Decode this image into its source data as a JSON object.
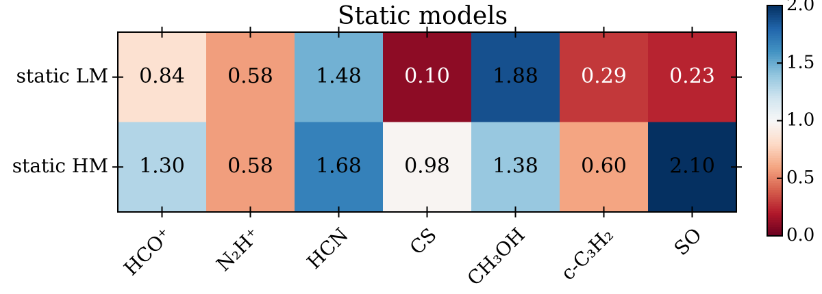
{
  "chart_data": {
    "type": "heatmap",
    "title": "Static models",
    "rows": [
      "static LM",
      "static HM"
    ],
    "categories": [
      "HCO⁺",
      "N₂H⁺",
      "HCN",
      "CS",
      "CH₃OH",
      "c-C₃H₂",
      "SO"
    ],
    "values": [
      [
        0.84,
        0.58,
        1.48,
        0.1,
        1.88,
        0.29,
        0.23
      ],
      [
        1.3,
        0.58,
        1.68,
        0.98,
        1.38,
        0.6,
        2.1
      ]
    ],
    "value_labels": [
      [
        "0.84",
        "0.58",
        "1.48",
        "0.10",
        "1.88",
        "0.29",
        "0.23"
      ],
      [
        "1.30",
        "0.58",
        "1.68",
        "0.98",
        "1.38",
        "0.60",
        "2.10"
      ]
    ],
    "colormap": "RdBu",
    "clim": [
      0,
      2
    ],
    "cticks": [
      {
        "value": 0,
        "label": "0.0"
      },
      {
        "value": 0.5,
        "label": "0.5"
      },
      {
        "value": 1,
        "label": "1.0"
      },
      {
        "value": 1.5,
        "label": "1.5"
      },
      {
        "value": 2,
        "label": "2.0"
      }
    ]
  }
}
